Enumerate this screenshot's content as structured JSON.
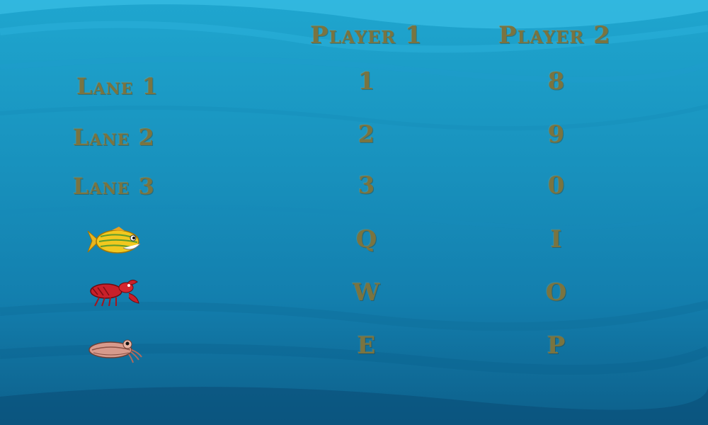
{
  "headers": {
    "player1": "Player 1",
    "player2": "Player 2"
  },
  "lanes": [
    {
      "label": "Lane 1",
      "p1": "1",
      "p2": "8"
    },
    {
      "label": "Lane 2",
      "p1": "2",
      "p2": "9"
    },
    {
      "label": "Lane 3",
      "p1": "3",
      "p2": "0"
    }
  ],
  "creatures": [
    {
      "icon": "yellow-fish-icon",
      "p1": "Q",
      "p2": "I"
    },
    {
      "icon": "red-lobster-icon",
      "p1": "W",
      "p2": "O"
    },
    {
      "icon": "cuttlefish-icon",
      "p1": "E",
      "p2": "P"
    }
  ],
  "colors": {
    "text": "#7a7440",
    "water": "#1891bd"
  }
}
